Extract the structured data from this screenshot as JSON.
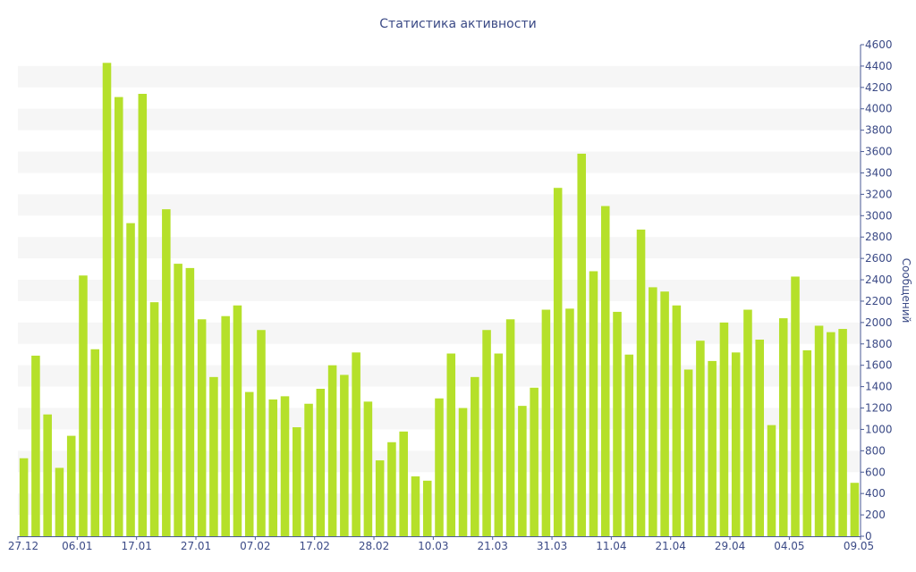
{
  "chart_data": {
    "type": "bar",
    "title": "Статистика активности",
    "ylabel": "Сообщений",
    "xlabel": "",
    "ylim": [
      0,
      4600
    ],
    "y_ticks": [
      0,
      200,
      400,
      600,
      800,
      1000,
      1200,
      1400,
      1600,
      1800,
      2000,
      2200,
      2400,
      2600,
      2800,
      3000,
      3200,
      3400,
      3600,
      3800,
      4000,
      4200,
      4400,
      4600
    ],
    "x_tick_labels": [
      "27.12",
      "06.01",
      "17.01",
      "27.01",
      "07.02",
      "17.02",
      "28.02",
      "10.03",
      "21.03",
      "31.03",
      "11.04",
      "21.04",
      "29.04",
      "04.05",
      "09.05"
    ],
    "x_tick_positions": [
      0,
      5,
      10,
      15,
      20,
      25,
      30,
      35,
      40,
      45,
      50,
      55,
      60,
      65,
      70
    ],
    "y_axis_side": "right",
    "grid": "alternating horizontal bands",
    "bar_color": "#b5e02a",
    "values": [
      730,
      1690,
      1140,
      640,
      940,
      2440,
      1750,
      4430,
      4110,
      2930,
      4140,
      2190,
      3060,
      2550,
      2510,
      2030,
      1490,
      2060,
      2160,
      1350,
      1930,
      1280,
      1310,
      1020,
      1240,
      1380,
      1600,
      1510,
      1720,
      1260,
      710,
      880,
      980,
      560,
      520,
      1290,
      1710,
      1200,
      1490,
      1930,
      1710,
      2030,
      1220,
      1390,
      2120,
      3260,
      2130,
      3580,
      2480,
      3090,
      2100,
      1700,
      2870,
      2330,
      2290,
      2160,
      1560,
      1830,
      1640,
      2000,
      1720,
      2120,
      1840,
      1040,
      2040,
      2430,
      1740,
      1970,
      1910,
      1940,
      500
    ]
  }
}
